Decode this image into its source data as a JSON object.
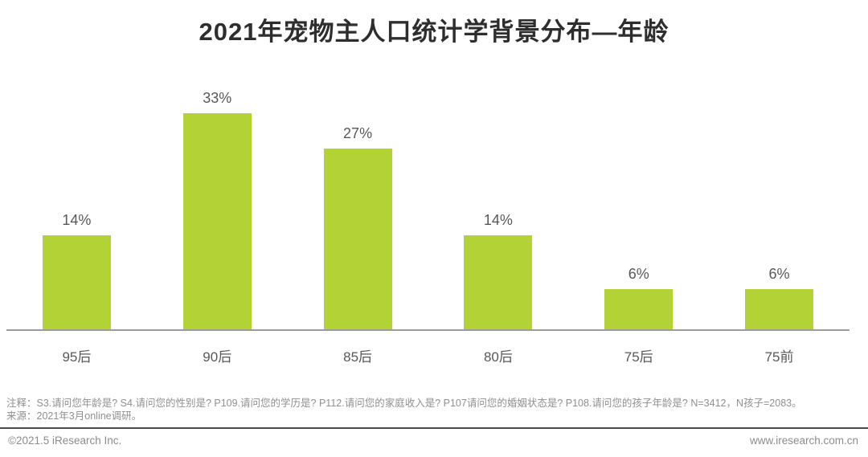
{
  "title": "2021年宠物主人口统计学背景分布—年龄",
  "chart_data": {
    "type": "bar",
    "title": "2021年宠物主人口统计学背景分布—年龄",
    "categories": [
      "95后",
      "90后",
      "85后",
      "80后",
      "75后",
      "75前"
    ],
    "values": [
      14,
      33,
      27,
      14,
      6,
      6
    ],
    "value_labels": [
      "14%",
      "33%",
      "27%",
      "14%",
      "6%",
      "6%"
    ],
    "xlabel": "",
    "ylabel": "",
    "ylim": [
      0,
      36
    ],
    "grid": false,
    "legend": false,
    "bar_color": "#B2D235",
    "axis_line_color": "#9B9B9B",
    "label_color": "#595757"
  },
  "notes": {
    "line1": "注释：S3.请问您年龄是? S4.请问您的性别是? P109.请问您的学历是? P112.请问您的家庭收入是? P107请问您的婚姻状态是? P108.请问您的孩子年龄是? N=3412，N孩子=2083。",
    "line2": "来源：2021年3月online调研。"
  },
  "footer": {
    "left": "©2021.5 iResearch Inc.",
    "right": "www.iresearch.com.cn"
  }
}
